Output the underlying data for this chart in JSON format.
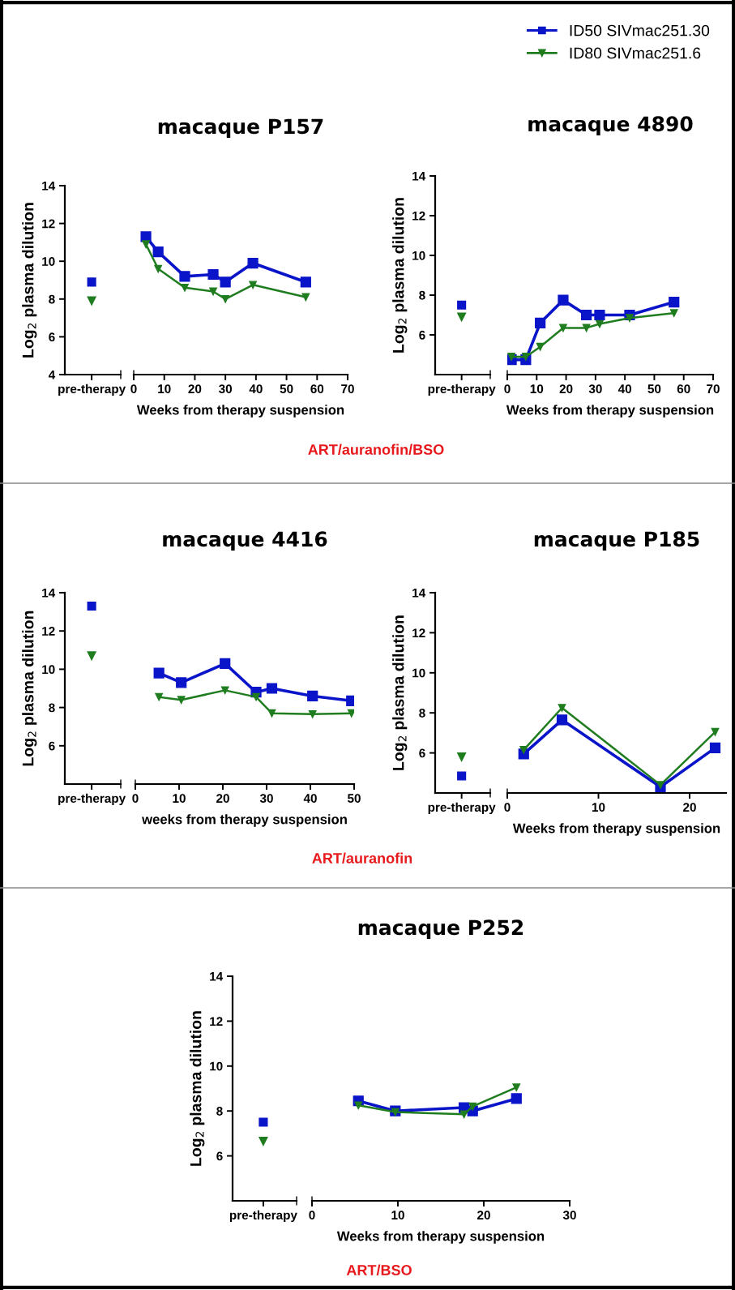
{
  "chart_data": [
    {
      "type": "scatter",
      "ylabel": "Log$_{2}$ plasma dilution",
      "categories": [
        "pre-therapy"
      ],
      "ylim": [
        4,
        14
      ],
      "yticks": [
        4,
        6,
        8,
        10,
        12,
        14
      ],
      "series": [
        {
          "color": "#0a14c8",
          "marker": "square",
          "values": [
            8.9
          ]
        },
        {
          "color": "#1f7d1f",
          "marker": "triangle",
          "values": [
            7.9
          ]
        }
      ]
    },
    {
      "type": "line",
      "title": "macaque P157",
      "xlabel": "Weeks from therapy suspension",
      "xlim": [
        0,
        70
      ],
      "xticks": [
        0,
        10,
        20,
        30,
        40,
        50,
        60,
        70
      ],
      "ylim": [
        4,
        14
      ],
      "tick_labels": "x",
      "line_style": "solid",
      "annotations": [
        "ART/auranofin/BSO"
      ],
      "series": [
        {
          "color": "#0a14c8",
          "marker": "square",
          "x": [
            4,
            8,
            16.7,
            26,
            30,
            39,
            56.3
          ],
          "values": [
            11.3,
            10.5,
            9.2,
            9.3,
            8.9,
            9.9,
            8.9
          ]
        },
        {
          "color": "#1f7d1f",
          "marker": "triangle",
          "x": [
            4,
            8,
            16.7,
            26,
            30,
            39,
            56.3
          ],
          "values": [
            10.9,
            9.6,
            8.6,
            8.4,
            8.0,
            8.75,
            8.1
          ]
        }
      ]
    },
    {
      "type": "scatter",
      "ylabel": "Log$_{2}$ plasma dilution",
      "categories": [
        "pre-therapy"
      ],
      "ylim": [
        4,
        14
      ],
      "yticks": [
        6,
        8,
        10,
        12,
        14
      ],
      "series": [
        {
          "color": "#0a14c8",
          "marker": "square",
          "values": [
            7.5
          ]
        },
        {
          "color": "#1f7d1f",
          "marker": "triangle",
          "values": [
            6.9
          ]
        }
      ]
    },
    {
      "type": "line",
      "xlabel": "Weeks from therapy suspension",
      "xlim": [
        0,
        70
      ],
      "xticks": [
        0,
        10,
        20,
        30,
        40,
        50,
        60,
        70
      ],
      "ylim": [
        4,
        14
      ],
      "title": "macaque 4890",
      "tick_labels": "x",
      "line_style": "solid",
      "legend": "top right",
      "series": [
        {
          "name": "ID50 SIVmac251.30",
          "color": "#0a14c8",
          "marker": "square",
          "x": [
            1.4,
            6.3,
            11.2,
            19,
            26.9,
            31.4,
            41.6,
            56.7
          ],
          "values": [
            4.75,
            4.75,
            6.6,
            7.75,
            7.0,
            7.0,
            7.0,
            7.65
          ]
        },
        {
          "name": "ID80 SIVmac251.6",
          "color": "#1f7d1f",
          "marker": "triangle",
          "x": [
            1.4,
            6.3,
            11.2,
            19,
            26.9,
            31.4,
            41.6,
            56.7
          ],
          "values": [
            4.9,
            4.9,
            5.4,
            6.35,
            6.35,
            6.55,
            6.85,
            7.1
          ]
        }
      ]
    },
    {
      "type": "scatter",
      "ylabel": "Log$_{2}$ plasma dilution",
      "categories": [
        "pre-therapy"
      ],
      "ylim": [
        4,
        14
      ],
      "yticks": [
        6,
        8,
        10,
        12,
        14
      ],
      "series": [
        {
          "color": "#0a14c8",
          "marker": "square",
          "values": [
            13.3
          ]
        },
        {
          "color": "#1f7d1f",
          "marker": "triangle",
          "values": [
            10.7
          ]
        }
      ]
    },
    {
      "type": "line",
      "title": "macaque 4416",
      "xlabel": "weeks from therapy suspension",
      "xlim": [
        0,
        50
      ],
      "xticks": [
        0,
        10,
        20,
        30,
        40,
        50
      ],
      "ylim": [
        4,
        14
      ],
      "tick_labels": "x",
      "line_style": "solid",
      "annotations": [
        "ART/auranofin"
      ],
      "series": [
        {
          "color": "#0a14c8",
          "marker": "square",
          "x": [
            5.4,
            10.5,
            20.5,
            27.6,
            31.2,
            40.5,
            49.4
          ],
          "values": [
            9.8,
            9.3,
            10.3,
            8.8,
            9.0,
            8.6,
            8.35
          ]
        },
        {
          "color": "#1f7d1f",
          "marker": "triangle",
          "x": [
            5.4,
            10.5,
            20.5,
            27.6,
            31.2,
            40.5,
            49.4
          ],
          "values": [
            8.55,
            8.4,
            8.9,
            8.55,
            7.7,
            7.65,
            7.7
          ]
        }
      ]
    },
    {
      "type": "scatter",
      "ylabel": "Log$_{2}$ plasma dilution",
      "categories": [
        "pre-therapy"
      ],
      "ylim": [
        4,
        14
      ],
      "yticks": [
        6,
        8,
        10,
        12,
        14
      ],
      "series": [
        {
          "color": "#0a14c8",
          "marker": "square",
          "values": [
            4.85
          ]
        },
        {
          "color": "#1f7d1f",
          "marker": "triangle",
          "values": [
            5.8
          ]
        }
      ]
    },
    {
      "type": "line",
      "title": "macaque P185",
      "xlabel": "Weeks from therapy suspension",
      "xlim": [
        0,
        24
      ],
      "xticks": [
        0,
        10,
        20
      ],
      "ylim": [
        4,
        14
      ],
      "tick_labels": "x",
      "line_style": "solid",
      "series": [
        {
          "color": "#0a14c8",
          "marker": "square",
          "x": [
            1.8,
            6.0,
            16.8,
            22.8
          ],
          "values": [
            5.95,
            7.65,
            4.3,
            6.25
          ]
        },
        {
          "color": "#1f7d1f",
          "marker": "triangle",
          "x": [
            1.8,
            6.0,
            16.8,
            22.8
          ],
          "values": [
            6.15,
            8.25,
            4.4,
            7.05
          ]
        }
      ]
    },
    {
      "type": "scatter",
      "ylabel": "Log$_{2}$ plasma dilution",
      "categories": [
        "pre-therapy"
      ],
      "ylim": [
        4,
        14
      ],
      "yticks": [
        6,
        8,
        10,
        12,
        14
      ],
      "series": [
        {
          "color": "#0a14c8",
          "marker": "square",
          "values": [
            7.5
          ]
        },
        {
          "color": "#1f7d1f",
          "marker": "triangle",
          "values": [
            6.65
          ]
        }
      ]
    },
    {
      "type": "line",
      "title": "macaque P252",
      "xlabel": "Weeks from therapy suspension",
      "xlim": [
        0,
        30
      ],
      "xticks": [
        0,
        10,
        20,
        30
      ],
      "ylim": [
        4,
        14
      ],
      "tick_labels": "x",
      "line_style": "solid",
      "annotations": [
        "ART/BSO"
      ],
      "series": [
        {
          "color": "#0a14c8",
          "marker": "square",
          "x": [
            5.4,
            9.7,
            17.7,
            18.7,
            23.8
          ],
          "values": [
            8.45,
            8.0,
            8.15,
            8.0,
            8.55
          ]
        },
        {
          "color": "#1f7d1f",
          "marker": "triangle",
          "x": [
            5.4,
            9.7,
            17.7,
            18.7,
            23.8
          ],
          "values": [
            8.25,
            7.95,
            7.85,
            8.2,
            9.05
          ]
        }
      ]
    }
  ]
}
